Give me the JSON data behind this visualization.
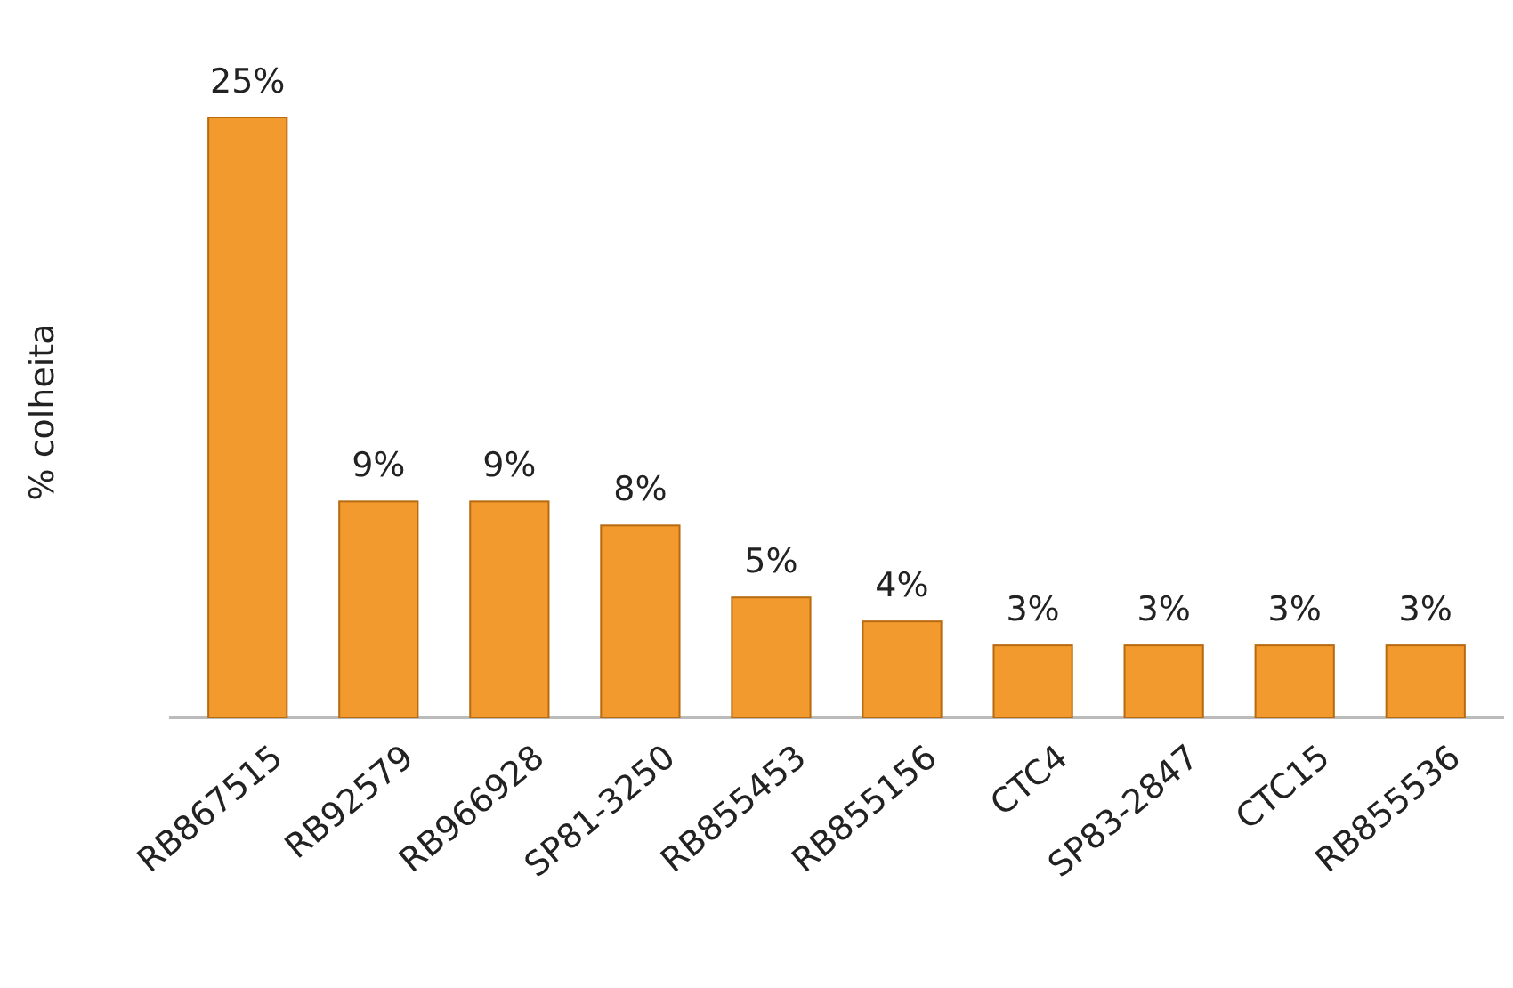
{
  "chart_data": {
    "type": "bar",
    "ylabel": "% colheita",
    "categories": [
      "RB867515",
      "RB92579",
      "RB966928",
      "SP81-3250",
      "RB855453",
      "RB855156",
      "CTC4",
      "SP83-2847",
      "CTC15",
      "RB855536"
    ],
    "values": [
      25,
      9,
      9,
      8,
      5,
      4,
      3,
      3,
      3,
      3
    ],
    "value_labels": [
      "25%",
      "9%",
      "9%",
      "8%",
      "5%",
      "4%",
      "3%",
      "3%",
      "3%",
      "3%"
    ],
    "color": "#f29a2e"
  }
}
